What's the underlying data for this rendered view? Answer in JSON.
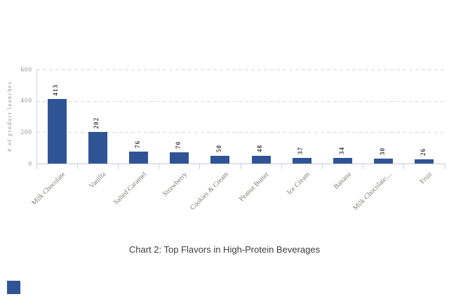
{
  "chart_data": {
    "type": "bar",
    "title": "",
    "xlabel": "",
    "ylabel": "# of product launches",
    "categories": [
      "Milk Chocolate",
      "Vanilla",
      "Salted Caramel",
      "Strawberry",
      "Cookies & Cream",
      "Peanut Butter",
      "Ice Cream",
      "Banana",
      "Milk Chocolate:...",
      "Fruit"
    ],
    "values": [
      413,
      202,
      76,
      70,
      50,
      48,
      37,
      34,
      30,
      26
    ],
    "ylim": [
      0,
      600
    ],
    "yticks": [
      0,
      200,
      400,
      600
    ],
    "grid": "horizontal-dashed",
    "legend": "none",
    "bar_color": "#2F5496",
    "value_label_style": "vertical above bars",
    "category_label_rotation": -45
  },
  "caption": "Chart 2: Top Flavors in High-Protein Beverages",
  "decor": {
    "corner_square_color": "#2F5496"
  },
  "colors": {
    "background": "#FFFFFF",
    "gridline": "#D9D9D9",
    "axis_line": "#BFCBD9",
    "tick_mark": "#C6D1DF",
    "y_tick_label": "#8E8E8E",
    "category_label": "#7C7C74",
    "value_label": "#3C3C3C",
    "caption_text": "#3C3C3C"
  }
}
